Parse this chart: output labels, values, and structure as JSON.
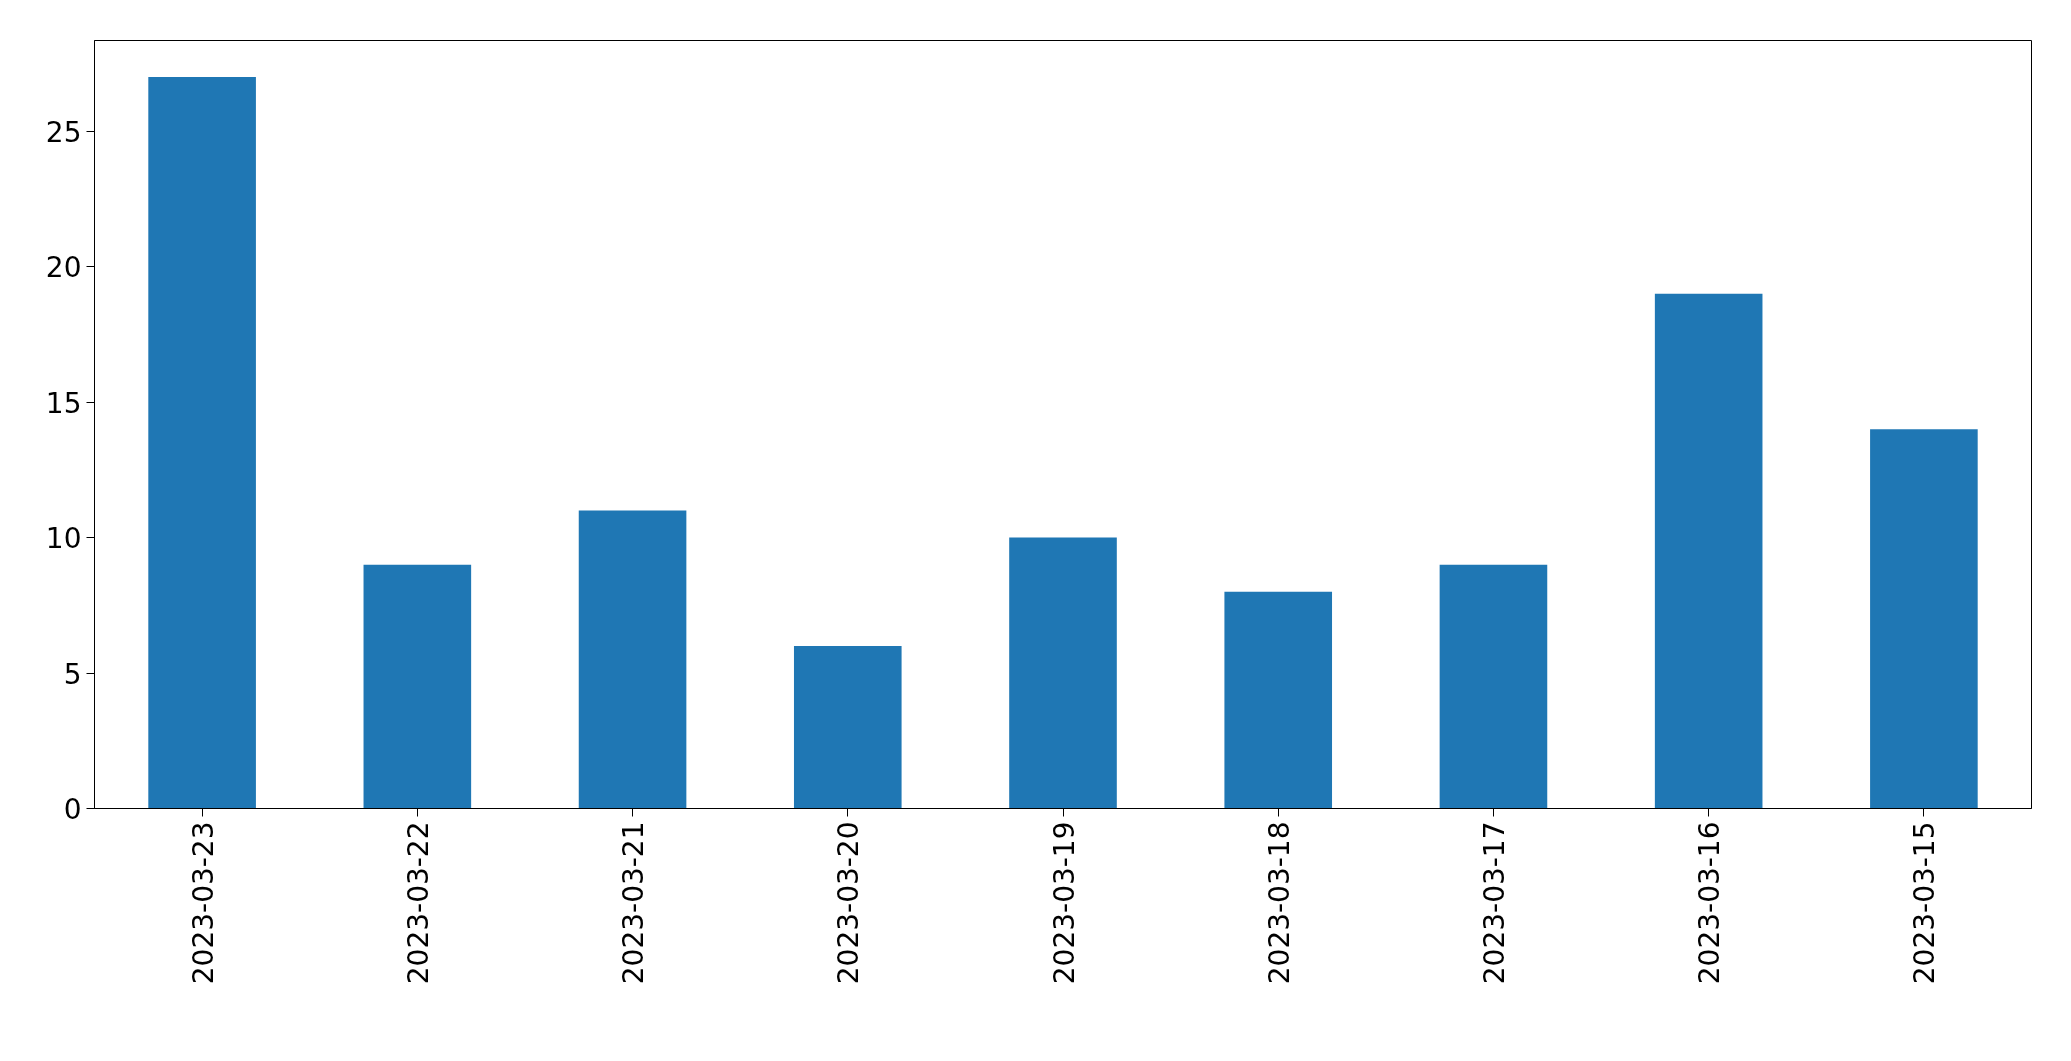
{
  "chart_data": {
    "type": "bar",
    "categories": [
      "2023-03-23",
      "2023-03-22",
      "2023-03-21",
      "2023-03-20",
      "2023-03-19",
      "2023-03-18",
      "2023-03-17",
      "2023-03-16",
      "2023-03-15"
    ],
    "values": [
      27,
      9,
      11,
      6,
      10,
      8,
      9,
      19,
      14
    ],
    "color": "#1f77b4",
    "ylim": [
      0,
      28.35
    ],
    "yticks": [
      0,
      5,
      10,
      15,
      20,
      25
    ],
    "grid": false
  }
}
